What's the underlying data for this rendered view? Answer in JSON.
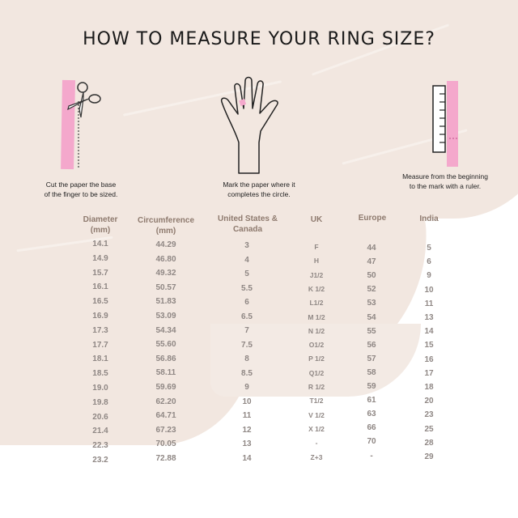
{
  "title": "HOW TO MEASURE YOUR RING SIZE?",
  "steps": [
    {
      "icon": "scissors-paper-icon",
      "caption_line1": "Cut the paper the base",
      "caption_line2": "of the finger to be sized."
    },
    {
      "icon": "hand-icon",
      "caption_line1": "Mark the paper where it",
      "caption_line2": "completes the circle."
    },
    {
      "icon": "ruler-paper-icon",
      "caption_line1": "Measure from the beginning",
      "caption_line2": "to the mark with a ruler."
    }
  ],
  "colors": {
    "accent_pink": "#f4a8cc",
    "background_brush": "#f2e7e0",
    "header_text": "#8e7a6e",
    "cell_text": "#8f8784"
  },
  "table": {
    "headers": {
      "diameter": [
        "Diameter",
        "(mm)"
      ],
      "circumference": [
        "Circumference",
        "(mm)"
      ],
      "us": [
        "United States &",
        "Canada"
      ],
      "uk": [
        "UK"
      ],
      "europe": [
        "Europe"
      ],
      "india": [
        "India"
      ]
    },
    "columns": {
      "diameter": [
        "14.1",
        "14.9",
        "15.7",
        "16.1",
        "16.5",
        "16.9",
        "17.3",
        "17.7",
        "18.1",
        "18.5",
        "19.0",
        "19.8",
        "20.6",
        "21.4",
        "22.3",
        "23.2"
      ],
      "circumference": [
        "44.29",
        "46.80",
        "49.32",
        "50.57",
        "51.83",
        "53.09",
        "54.34",
        "55.60",
        "56.86",
        "58.11",
        "59.69",
        "62.20",
        "64.71",
        "67.23",
        "70.05",
        "72.88"
      ],
      "us": [
        "3",
        "4",
        "5",
        "5.5",
        "6",
        "6.5",
        "7",
        "7.5",
        "8",
        "8.5",
        "9",
        "10",
        "11",
        "12",
        "13",
        "14"
      ],
      "uk": [
        "F",
        "H",
        "J1/2",
        "K 1/2",
        "L1/2",
        "M 1/2",
        "N 1/2",
        "O1/2",
        "P 1/2",
        "Q1/2",
        "R 1/2",
        "T1/2",
        "V 1/2",
        "X 1/2",
        "-",
        "Z+3"
      ],
      "europe": [
        "44",
        "47",
        "50",
        "52",
        "53",
        "54",
        "55",
        "56",
        "57",
        "58",
        "59",
        "61",
        "63",
        "66",
        "70",
        "-"
      ],
      "india": [
        "5",
        "6",
        "9",
        "10",
        "11",
        "13",
        "14",
        "15",
        "16",
        "17",
        "18",
        "20",
        "23",
        "25",
        "28",
        "29"
      ]
    }
  }
}
